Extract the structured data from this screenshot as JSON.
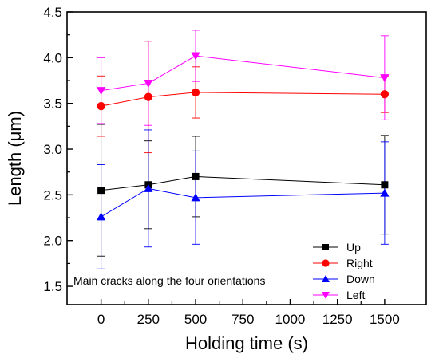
{
  "chart_data": {
    "type": "line",
    "xlabel": "Holding time (s)",
    "ylabel": "Length (μm)",
    "xlim": [
      -180,
      1720
    ],
    "ylim": [
      1.3,
      4.5
    ],
    "x_ticks": [
      0,
      250,
      500,
      750,
      1000,
      1250,
      1500
    ],
    "y_ticks": [
      1.5,
      2.0,
      2.5,
      3.0,
      3.5,
      4.0,
      4.5
    ],
    "x_tick_labels": [
      "0",
      "250",
      "500",
      "750",
      "1000",
      "1250",
      "1500"
    ],
    "y_tick_labels": [
      "1.5",
      "2.0",
      "2.5",
      "3.0",
      "3.5",
      "4.0",
      "4.5"
    ],
    "x": [
      0,
      250,
      500,
      1500
    ],
    "grid": false,
    "legend_position": "bottom-right",
    "annotation": "Main cracks along the four orientations",
    "series": [
      {
        "name": "Up",
        "color": "#000000",
        "marker": "square",
        "values": [
          2.55,
          2.61,
          2.7,
          2.61
        ],
        "error": [
          0.72,
          0.48,
          0.44,
          0.54
        ]
      },
      {
        "name": "Right",
        "color": "#ff0000",
        "marker": "circle",
        "values": [
          3.47,
          3.57,
          3.62,
          3.6
        ],
        "error": [
          0.33,
          0.61,
          0.28,
          0.2
        ]
      },
      {
        "name": "Down",
        "color": "#0000ff",
        "marker": "triangle-up",
        "values": [
          2.26,
          2.57,
          2.47,
          2.52
        ],
        "error": [
          0.57,
          0.64,
          0.51,
          0.56
        ]
      },
      {
        "name": "Left",
        "color": "#ff00ff",
        "marker": "triangle-down",
        "values": [
          3.64,
          3.72,
          4.02,
          3.78
        ],
        "error": [
          0.36,
          0.46,
          0.28,
          0.46
        ]
      }
    ]
  }
}
